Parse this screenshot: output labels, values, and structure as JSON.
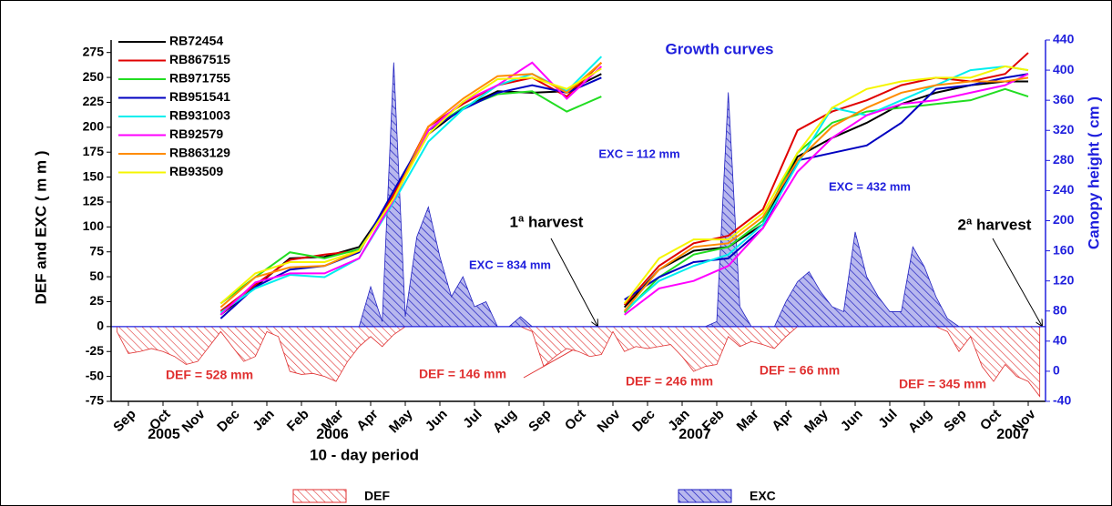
{
  "chart_data": [
    {
      "type": "area",
      "xlabel": "10 - day period",
      "ylabel": "DEF and EXC ( m m )",
      "xlim": [
        -0.5,
        80.5
      ],
      "ylim": [
        -75,
        287.5
      ],
      "yticks": [
        -75,
        -50,
        -25,
        0,
        25,
        50,
        75,
        100,
        125,
        150,
        175,
        200,
        225,
        250,
        275
      ],
      "xticks": [
        {
          "value": 1,
          "label": "Sep"
        },
        {
          "value": 4,
          "label": "Oct"
        },
        {
          "value": 7,
          "label": "Nov"
        },
        {
          "value": 10,
          "label": "Dec"
        },
        {
          "value": 13,
          "label": "Jan"
        },
        {
          "value": 16,
          "label": "Feb"
        },
        {
          "value": 19,
          "label": "Mar"
        },
        {
          "value": 22,
          "label": "Apr"
        },
        {
          "value": 25,
          "label": "May"
        },
        {
          "value": 28,
          "label": "Jun"
        },
        {
          "value": 31,
          "label": "Jul"
        },
        {
          "value": 34,
          "label": "Aug"
        },
        {
          "value": 37,
          "label": "Sep"
        },
        {
          "value": 40,
          "label": "Oct"
        },
        {
          "value": 43,
          "label": "Nov"
        },
        {
          "value": 46,
          "label": "Dec"
        },
        {
          "value": 49,
          "label": "Jan"
        },
        {
          "value": 52,
          "label": "Feb"
        },
        {
          "value": 55,
          "label": "Mar"
        },
        {
          "value": 58,
          "label": "Apr"
        },
        {
          "value": 61,
          "label": "May"
        },
        {
          "value": 64,
          "label": "Jun"
        },
        {
          "value": 67,
          "label": "Jul"
        },
        {
          "value": 70,
          "label": "Aug"
        },
        {
          "value": 73,
          "label": "Sep"
        },
        {
          "value": 76,
          "label": "Oct"
        },
        {
          "value": 79,
          "label": "Nov"
        }
      ],
      "x": [
        0,
        1,
        2,
        3,
        4,
        5,
        6,
        7,
        8,
        9,
        10,
        11,
        12,
        13,
        14,
        15,
        16,
        17,
        18,
        19,
        20,
        21,
        22,
        23,
        24,
        25,
        26,
        27,
        28,
        29,
        30,
        31,
        32,
        33,
        34,
        35,
        36,
        37,
        38,
        39,
        40,
        41,
        42,
        43,
        44,
        45,
        46,
        47,
        48,
        49,
        50,
        51,
        52,
        53,
        54,
        55,
        56,
        57,
        58,
        59,
        60,
        61,
        62,
        63,
        64,
        65,
        66,
        67,
        68,
        69,
        70,
        71,
        72,
        73,
        74,
        75,
        76,
        77,
        78,
        79,
        80
      ],
      "series": [
        {
          "name": "DEF",
          "color": "#e03030",
          "values": [
            -5,
            -27,
            -25,
            -22,
            -25,
            -30,
            -38,
            -35,
            -20,
            -5,
            -20,
            -35,
            -30,
            -5,
            -10,
            -45,
            -48,
            -47,
            -50,
            -55,
            -35,
            -20,
            -10,
            -20,
            -8,
            0,
            0,
            0,
            0,
            0,
            0,
            0,
            0,
            0,
            0,
            0,
            -5,
            -40,
            -30,
            -22,
            -25,
            -30,
            -28,
            -5,
            -25,
            -20,
            -22,
            -20,
            -18,
            -30,
            -45,
            -40,
            -38,
            -10,
            -20,
            -15,
            -18,
            -22,
            -10,
            0,
            0,
            0,
            0,
            0,
            0,
            0,
            0,
            0,
            0,
            0,
            0,
            0,
            -5,
            -25,
            -10,
            -40,
            -55,
            -38,
            -50,
            -55,
            -70
          ]
        },
        {
          "name": "EXC",
          "color": "#2020c0",
          "values": [
            0,
            0,
            0,
            0,
            0,
            0,
            0,
            0,
            0,
            0,
            0,
            0,
            0,
            0,
            0,
            0,
            0,
            0,
            0,
            0,
            0,
            0,
            40,
            5,
            265,
            10,
            90,
            120,
            70,
            30,
            50,
            20,
            25,
            0,
            0,
            10,
            0,
            0,
            0,
            0,
            0,
            0,
            0,
            0,
            0,
            0,
            0,
            0,
            0,
            0,
            0,
            0,
            5,
            235,
            20,
            0,
            0,
            0,
            25,
            45,
            55,
            35,
            20,
            15,
            95,
            50,
            30,
            15,
            15,
            80,
            60,
            30,
            8,
            0,
            0,
            0,
            0,
            0,
            0,
            0,
            0
          ]
        }
      ],
      "annotations": [
        "2005",
        "2006",
        "2007",
        "2007",
        "DEF = 528 mm",
        "DEF = 146 mm",
        "DEF = 246 mm",
        "DEF = 66 mm",
        "DEF = 345 mm",
        "EXC = 834 mm",
        "EXC = 112 mm",
        "EXC = 432 mm",
        "1ª harvest",
        "2ª harvest"
      ],
      "legend": "lower center"
    },
    {
      "type": "line",
      "title": "Growth curves",
      "y2label": "Canopy height ( cm )",
      "xlim": [
        -0.5,
        80.5
      ],
      "y2lim": [
        -40,
        440
      ],
      "y2ticks": [
        -40,
        0,
        40,
        80,
        120,
        160,
        200,
        240,
        280,
        320,
        360,
        400,
        440
      ],
      "x": [
        9,
        12,
        15,
        18,
        21,
        24,
        27,
        30,
        33,
        36,
        39,
        42,
        43,
        44,
        47,
        50,
        53,
        56,
        59,
        62,
        65,
        68,
        71,
        74,
        77,
        79
      ],
      "legend": "upper left",
      "series": [
        {
          "name": "RB72454",
          "color": "#000000",
          "axis": "y2",
          "values": [
            75,
            112,
            150,
            152,
            165,
            232,
            315,
            350,
            372,
            370,
            372,
            395,
            null,
            85,
            135,
            160,
            165,
            195,
            285,
            310,
            330,
            355,
            370,
            380,
            385,
            385
          ]
        },
        {
          "name": "RB867515",
          "color": "#e00000",
          "axis": "y2",
          "values": [
            80,
            115,
            148,
            155,
            160,
            235,
            325,
            355,
            380,
            390,
            365,
            410,
            null,
            88,
            140,
            170,
            180,
            215,
            320,
            345,
            360,
            380,
            390,
            385,
            395,
            423
          ]
        },
        {
          "name": "RB971755",
          "color": "#22dd22",
          "axis": "y2",
          "values": [
            90,
            125,
            158,
            150,
            162,
            228,
            320,
            350,
            368,
            372,
            345,
            365,
            null,
            78,
            125,
            155,
            165,
            200,
            290,
            330,
            345,
            350,
            355,
            360,
            375,
            365
          ]
        },
        {
          "name": "RB951541",
          "color": "#0000c0",
          "axis": "y2",
          "values": [
            70,
            112,
            135,
            140,
            158,
            240,
            320,
            348,
            370,
            380,
            370,
            390,
            null,
            95,
            125,
            145,
            150,
            190,
            280,
            290,
            300,
            330,
            375,
            380,
            390,
            395
          ]
        },
        {
          "name": "RB931003",
          "color": "#00eeee",
          "axis": "y2",
          "values": [
            78,
            110,
            128,
            125,
            150,
            225,
            305,
            348,
            380,
            395,
            372,
            418,
            null,
            80,
            120,
            140,
            155,
            195,
            275,
            350,
            340,
            360,
            380,
            400,
            405,
            400
          ]
        },
        {
          "name": "RB92579",
          "color": "#ff00ff",
          "axis": "y2",
          "values": [
            75,
            118,
            130,
            130,
            150,
            228,
            320,
            358,
            380,
            410,
            362,
            405,
            null,
            75,
            110,
            120,
            140,
            190,
            265,
            310,
            340,
            355,
            360,
            370,
            380,
            395
          ]
        },
        {
          "name": "RB863129",
          "color": "#ff8c00",
          "axis": "y2",
          "values": [
            85,
            125,
            138,
            140,
            160,
            230,
            325,
            362,
            392,
            395,
            370,
            410,
            null,
            80,
            135,
            165,
            170,
            205,
            280,
            325,
            350,
            370,
            380,
            385,
            385,
            390
          ]
        },
        {
          "name": "RB93509",
          "color": "#f5f500",
          "axis": "y2",
          "values": [
            90,
            130,
            145,
            145,
            160,
            230,
            315,
            358,
            388,
            390,
            375,
            402,
            null,
            90,
            150,
            175,
            175,
            210,
            290,
            350,
            375,
            385,
            390,
            390,
            405,
            400
          ]
        }
      ]
    }
  ]
}
